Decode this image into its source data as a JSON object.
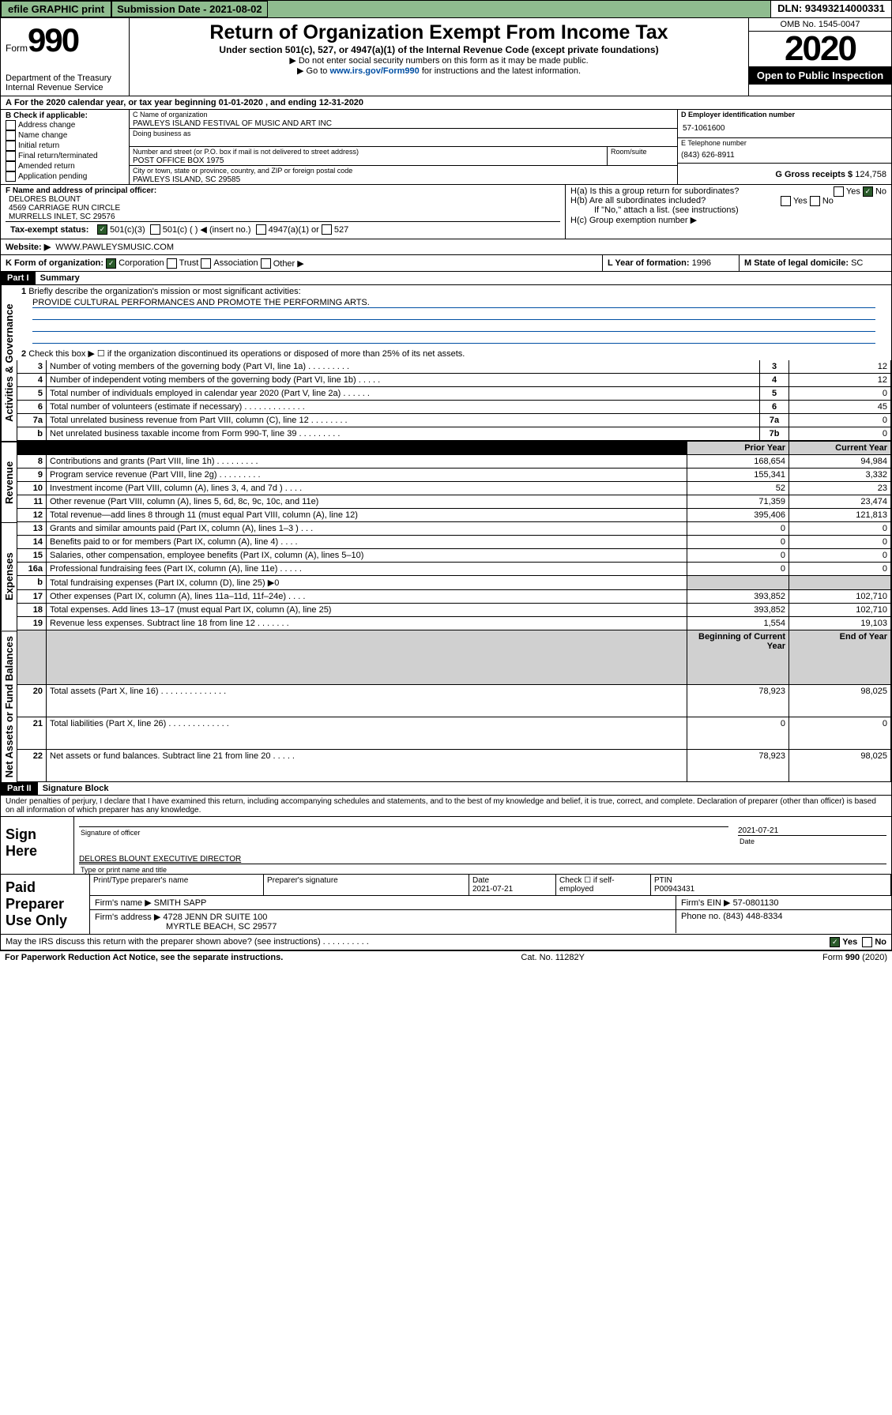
{
  "topbar": {
    "efile": "efile GRAPHIC print",
    "subLabel": "Submission Date - 2021-08-02",
    "dln": "DLN: 93493214000331"
  },
  "header": {
    "formWord": "Form",
    "formNum": "990",
    "dept": "Department of the Treasury",
    "irs": "Internal Revenue Service",
    "title": "Return of Organization Exempt From Income Tax",
    "sub1": "Under section 501(c), 527, or 4947(a)(1) of the Internal Revenue Code (except private foundations)",
    "sub2": "▶ Do not enter social security numbers on this form as it may be made public.",
    "sub3a": "▶ Go to ",
    "sub3link": "www.irs.gov/Form990",
    "sub3b": " for instructions and the latest information.",
    "omb": "OMB No. 1545-0047",
    "year": "2020",
    "open": "Open to Public Inspection"
  },
  "a": {
    "text": "For the 2020 calendar year, or tax year beginning 01-01-2020   , and ending 12-31-2020"
  },
  "b": {
    "hdr": "B Check if applicable:",
    "items": [
      "Address change",
      "Name change",
      "Initial return",
      "Final return/terminated",
      "Amended return",
      "Application pending"
    ]
  },
  "c": {
    "lbl": "C Name of organization",
    "name": "PAWLEYS ISLAND FESTIVAL OF MUSIC AND ART INC",
    "dba": "Doing business as",
    "addrLbl": "Number and street (or P.O. box if mail is not delivered to street address)",
    "room": "Room/suite",
    "addr": "POST OFFICE BOX 1975",
    "cityLbl": "City or town, state or province, country, and ZIP or foreign postal code",
    "city": "PAWLEYS ISLAND, SC  29585"
  },
  "d": {
    "lbl": "D Employer identification number",
    "val": "57-1061600"
  },
  "e": {
    "lbl": "E Telephone number",
    "val": "(843) 626-8911"
  },
  "g": {
    "lbl": "G Gross receipts $",
    "val": "124,758"
  },
  "f": {
    "lbl": "F Name and address of principal officer:",
    "name": "DELORES BLOUNT",
    "addr1": "4569 CARRIAGE RUN CIRCLE",
    "addr2": "MURRELLS INLET, SC  29576"
  },
  "h": {
    "a": "H(a)  Is this a group return for subordinates?",
    "b": "H(b)  Are all subordinates included?",
    "note": "If \"No,\" attach a list. (see instructions)",
    "c": "H(c)  Group exemption number ▶",
    "yes": "Yes",
    "no": "No"
  },
  "i": {
    "lbl": "Tax-exempt status:",
    "c3": "501(c)(3)",
    "c": "501(c) (  ) ◀ (insert no.)",
    "a1": "4947(a)(1) or",
    "s527": "527"
  },
  "j": {
    "lbl": "Website: ▶",
    "val": "WWW.PAWLEYSMUSIC.COM"
  },
  "k": {
    "lbl": "K Form of organization:",
    "corp": "Corporation",
    "trust": "Trust",
    "assoc": "Association",
    "other": "Other ▶"
  },
  "l": {
    "lbl": "L Year of formation:",
    "val": "1996"
  },
  "m": {
    "lbl": "M State of legal domicile:",
    "val": "SC"
  },
  "part1": {
    "lbl": "Part I",
    "title": "Summary"
  },
  "summary": {
    "q1": "Briefly describe the organization's mission or most significant activities:",
    "mission": "PROVIDE CULTURAL PERFORMANCES AND PROMOTE THE PERFORMING ARTS.",
    "q2": "Check this box ▶ ☐  if the organization discontinued its operations or disposed of more than 25% of its net assets.",
    "rows": [
      {
        "n": "3",
        "t": "Number of voting members of the governing body (Part VI, line 1a)  .   .   .   .   .   .   .   .   .",
        "b": "3",
        "v": "12"
      },
      {
        "n": "4",
        "t": "Number of independent voting members of the governing body (Part VI, line 1b)  .   .   .   .   .",
        "b": "4",
        "v": "12"
      },
      {
        "n": "5",
        "t": "Total number of individuals employed in calendar year 2020 (Part V, line 2a)  .   .   .   .   .   .",
        "b": "5",
        "v": "0"
      },
      {
        "n": "6",
        "t": "Total number of volunteers (estimate if necessary)  .   .   .   .   .   .   .   .   .   .   .   .   .",
        "b": "6",
        "v": "45"
      },
      {
        "n": "7a",
        "t": "Total unrelated business revenue from Part VIII, column (C), line 12  .   .   .   .   .   .   .   .",
        "b": "7a",
        "v": "0"
      },
      {
        "n": "b",
        "t": "Net unrelated business taxable income from Form 990-T, line 39  .   .   .   .   .   .   .   .   .",
        "b": "7b",
        "v": "0"
      }
    ],
    "priorYear": "Prior Year",
    "currentYear": "Current Year",
    "rev": [
      {
        "n": "8",
        "t": "Contributions and grants (Part VIII, line 1h)  .   .   .   .   .   .   .   .   .",
        "p": "168,654",
        "c": "94,984"
      },
      {
        "n": "9",
        "t": "Program service revenue (Part VIII, line 2g)  .   .   .   .   .   .   .   .   .",
        "p": "155,341",
        "c": "3,332"
      },
      {
        "n": "10",
        "t": "Investment income (Part VIII, column (A), lines 3, 4, and 7d )  .   .   .   .",
        "p": "52",
        "c": "23"
      },
      {
        "n": "11",
        "t": "Other revenue (Part VIII, column (A), lines 5, 6d, 8c, 9c, 10c, and 11e)",
        "p": "71,359",
        "c": "23,474"
      },
      {
        "n": "12",
        "t": "Total revenue—add lines 8 through 11 (must equal Part VIII, column (A), line 12)",
        "p": "395,406",
        "c": "121,813"
      }
    ],
    "exp": [
      {
        "n": "13",
        "t": "Grants and similar amounts paid (Part IX, column (A), lines 1–3 )  .   .   .",
        "p": "0",
        "c": "0"
      },
      {
        "n": "14",
        "t": "Benefits paid to or for members (Part IX, column (A), line 4)  .   .   .   .",
        "p": "0",
        "c": "0"
      },
      {
        "n": "15",
        "t": "Salaries, other compensation, employee benefits (Part IX, column (A), lines 5–10)",
        "p": "0",
        "c": "0"
      },
      {
        "n": "16a",
        "t": "Professional fundraising fees (Part IX, column (A), line 11e)  .   .   .   .   .",
        "p": "0",
        "c": "0"
      },
      {
        "n": "b",
        "t": "Total fundraising expenses (Part IX, column (D), line 25) ▶0",
        "p": "",
        "c": ""
      },
      {
        "n": "17",
        "t": "Other expenses (Part IX, column (A), lines 11a–11d, 11f–24e)  .   .   .   .",
        "p": "393,852",
        "c": "102,710"
      },
      {
        "n": "18",
        "t": "Total expenses. Add lines 13–17 (must equal Part IX, column (A), line 25)",
        "p": "393,852",
        "c": "102,710"
      },
      {
        "n": "19",
        "t": "Revenue less expenses. Subtract line 18 from line 12  .   .   .   .   .   .   .",
        "p": "1,554",
        "c": "19,103"
      }
    ],
    "beg": "Beginning of Current Year",
    "end": "End of Year",
    "net": [
      {
        "n": "20",
        "t": "Total assets (Part X, line 16)  .   .   .   .   .   .   .   .   .   .   .   .   .   .",
        "p": "78,923",
        "c": "98,025"
      },
      {
        "n": "21",
        "t": "Total liabilities (Part X, line 26)  .   .   .   .   .   .   .   .   .   .   .   .   .",
        "p": "0",
        "c": "0"
      },
      {
        "n": "22",
        "t": "Net assets or fund balances. Subtract line 21 from line 20  .   .   .   .   .",
        "p": "78,923",
        "c": "98,025"
      }
    ]
  },
  "sideLabels": {
    "ag": "Activities & Governance",
    "rev": "Revenue",
    "exp": "Expenses",
    "net": "Net Assets or Fund Balances"
  },
  "part2": {
    "lbl": "Part II",
    "title": "Signature Block",
    "decl": "Under penalties of perjury, I declare that I have examined this return, including accompanying schedules and statements, and to the best of my knowledge and belief, it is true, correct, and complete. Declaration of preparer (other than officer) is based on all information of which preparer has any knowledge."
  },
  "sign": {
    "here": "Sign Here",
    "sigOff": "Signature of officer",
    "date": "Date",
    "dateVal": "2021-07-21",
    "typed": "DELORES BLOUNT  EXECUTIVE DIRECTOR",
    "typedLbl": "Type or print name and title"
  },
  "paid": {
    "lbl": "Paid Preparer Use Only",
    "h1": "Print/Type preparer's name",
    "h2": "Preparer's signature",
    "h3": "Date",
    "h3v": "2021-07-21",
    "h4": "Check ☐ if self-employed",
    "h5": "PTIN",
    "h5v": "P00943431",
    "firmLbl": "Firm's name   ▶",
    "firm": "SMITH SAPP",
    "einLbl": "Firm's EIN ▶",
    "ein": "57-0801130",
    "addrLbl": "Firm's address ▶",
    "addr": "4728 JENN DR SUITE 100",
    "city": "MYRTLE BEACH, SC  29577",
    "phLbl": "Phone no.",
    "ph": "(843) 448-8334"
  },
  "discuss": {
    "q": "May the IRS discuss this return with the preparer shown above? (see instructions)  .   .   .   .   .   .   .   .   .   .",
    "yes": "Yes",
    "no": "No"
  },
  "foot": {
    "pra": "For Paperwork Reduction Act Notice, see the separate instructions.",
    "cat": "Cat. No. 11282Y",
    "form": "Form 990 (2020)"
  }
}
